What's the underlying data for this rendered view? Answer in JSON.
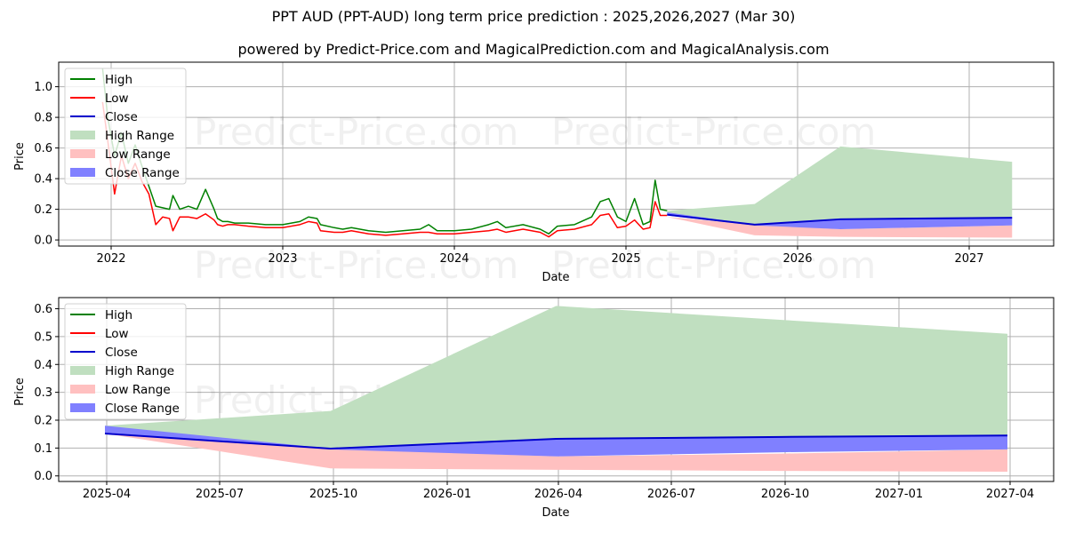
{
  "header": {
    "title": "PPT AUD (PPT-AUD) long term price prediction : 2025,2026,2027 (Mar 30)",
    "subtitle": "powered by Predict-Price.com and MagicalPrediction.com and MagicalAnalysis.com"
  },
  "watermark": "Predict-Price.com",
  "colors": {
    "high": "#008000",
    "low": "#ff0000",
    "close": "#0000cc",
    "high_range": "#c0dfc0",
    "low_range": "#ffc0c0",
    "close_range": "#8080ff",
    "grid": "#b0b0b0"
  },
  "legend": [
    "High",
    "Low",
    "Close",
    "High Range",
    "Low Range",
    "Close Range"
  ],
  "chart_data": [
    {
      "type": "line",
      "title": "PPT AUD (PPT-AUD) long term price prediction : 2025,2026,2027 (Mar 30)",
      "xlabel": "Date",
      "ylabel": "Price",
      "xlim": [
        2021.7,
        2027.5
      ],
      "ylim": [
        -0.04,
        1.16
      ],
      "xticks": [
        2022,
        2023,
        2024,
        2025,
        2026,
        2027
      ],
      "xtick_labels": [
        "2022",
        "2023",
        "2024",
        "2025",
        "2026",
        "2027"
      ],
      "yticks": [
        0.0,
        0.2,
        0.4,
        0.6,
        0.8,
        1.0
      ],
      "ytick_labels": [
        "0.0",
        "0.2",
        "0.4",
        "0.6",
        "0.8",
        "1.0"
      ],
      "grid": true,
      "legend_position": "upper left",
      "series": [
        {
          "name": "High",
          "x": [
            2021.95,
            2021.98,
            2022.02,
            2022.06,
            2022.1,
            2022.14,
            2022.18,
            2022.22,
            2022.26,
            2022.3,
            2022.34,
            2022.36,
            2022.4,
            2022.45,
            2022.5,
            2022.55,
            2022.6,
            2022.62,
            2022.65,
            2022.68,
            2022.72,
            2022.8,
            2022.9,
            2023.0,
            2023.1,
            2023.15,
            2023.2,
            2023.22,
            2023.3,
            2023.35,
            2023.4,
            2023.5,
            2023.6,
            2023.7,
            2023.8,
            2023.85,
            2023.9,
            2024.0,
            2024.1,
            2024.2,
            2024.25,
            2024.3,
            2024.4,
            2024.5,
            2024.55,
            2024.6,
            2024.7,
            2024.8,
            2024.85,
            2024.9,
            2024.95,
            2025.0,
            2025.05,
            2025.1,
            2025.14,
            2025.17,
            2025.2,
            2025.24
          ],
          "values": [
            1.12,
            0.8,
            0.55,
            0.7,
            0.5,
            0.62,
            0.48,
            0.35,
            0.22,
            0.21,
            0.2,
            0.29,
            0.2,
            0.22,
            0.2,
            0.33,
            0.2,
            0.14,
            0.12,
            0.12,
            0.11,
            0.11,
            0.1,
            0.1,
            0.12,
            0.15,
            0.14,
            0.1,
            0.08,
            0.07,
            0.08,
            0.06,
            0.05,
            0.06,
            0.07,
            0.1,
            0.06,
            0.06,
            0.07,
            0.1,
            0.12,
            0.08,
            0.1,
            0.07,
            0.04,
            0.09,
            0.1,
            0.15,
            0.25,
            0.27,
            0.15,
            0.12,
            0.27,
            0.1,
            0.12,
            0.39,
            0.2,
            0.19
          ]
        },
        {
          "name": "Low",
          "x": [
            2021.95,
            2021.98,
            2022.02,
            2022.06,
            2022.1,
            2022.14,
            2022.18,
            2022.22,
            2022.26,
            2022.3,
            2022.34,
            2022.36,
            2022.4,
            2022.45,
            2022.5,
            2022.55,
            2022.6,
            2022.62,
            2022.65,
            2022.68,
            2022.72,
            2022.8,
            2022.9,
            2023.0,
            2023.1,
            2023.15,
            2023.2,
            2023.22,
            2023.3,
            2023.35,
            2023.4,
            2023.5,
            2023.6,
            2023.7,
            2023.8,
            2023.85,
            2023.9,
            2024.0,
            2024.1,
            2024.2,
            2024.25,
            2024.3,
            2024.4,
            2024.5,
            2024.55,
            2024.6,
            2024.7,
            2024.8,
            2024.85,
            2024.9,
            2024.95,
            2025.0,
            2025.05,
            2025.1,
            2025.14,
            2025.17,
            2025.2,
            2025.24
          ],
          "values": [
            0.9,
            0.65,
            0.3,
            0.55,
            0.4,
            0.5,
            0.38,
            0.3,
            0.1,
            0.15,
            0.14,
            0.06,
            0.15,
            0.15,
            0.14,
            0.17,
            0.13,
            0.1,
            0.09,
            0.1,
            0.1,
            0.09,
            0.08,
            0.08,
            0.1,
            0.12,
            0.11,
            0.06,
            0.05,
            0.05,
            0.06,
            0.04,
            0.03,
            0.04,
            0.05,
            0.05,
            0.04,
            0.04,
            0.05,
            0.06,
            0.07,
            0.05,
            0.07,
            0.05,
            0.02,
            0.06,
            0.07,
            0.1,
            0.16,
            0.17,
            0.08,
            0.09,
            0.13,
            0.07,
            0.08,
            0.25,
            0.16,
            0.16
          ]
        },
        {
          "name": "Close",
          "x": [
            2025.24,
            2025.75,
            2026.25,
            2027.25
          ],
          "values": [
            0.165,
            0.1,
            0.135,
            0.145
          ]
        },
        {
          "name": "High Range",
          "x": [
            2025.24,
            2025.75,
            2026.25,
            2027.25
          ],
          "upper": [
            0.19,
            0.235,
            0.61,
            0.51
          ],
          "lower": [
            0.165,
            0.1,
            0.135,
            0.145
          ]
        },
        {
          "name": "Low Range",
          "x": [
            2025.24,
            2025.75,
            2026.25,
            2027.25
          ],
          "upper": [
            0.15,
            0.1,
            0.07,
            0.095
          ],
          "lower": [
            0.15,
            0.03,
            0.02,
            0.015
          ]
        },
        {
          "name": "Close Range",
          "x": [
            2025.24,
            2025.75,
            2026.25,
            2027.25
          ],
          "upper": [
            0.18,
            0.1,
            0.135,
            0.145
          ],
          "lower": [
            0.16,
            0.095,
            0.07,
            0.095
          ]
        }
      ]
    },
    {
      "type": "line",
      "title": "",
      "xlabel": "Date",
      "ylabel": "Price",
      "xlim": [
        "2025-02-15",
        "2027-05-20"
      ],
      "ylim": [
        -0.02,
        0.64
      ],
      "xticks": [
        "2025-04",
        "2025-07",
        "2025-10",
        "2026-01",
        "2026-04",
        "2026-07",
        "2026-10",
        "2027-01",
        "2027-04"
      ],
      "xtick_labels": [
        "2025-04",
        "2025-07",
        "2025-10",
        "2026-01",
        "2026-04",
        "2026-07",
        "2026-10",
        "2027-01",
        "2027-04"
      ],
      "yticks": [
        0.0,
        0.1,
        0.2,
        0.3,
        0.4,
        0.5,
        0.6
      ],
      "ytick_labels": [
        "0.0",
        "0.1",
        "0.2",
        "0.3",
        "0.4",
        "0.5",
        "0.6"
      ],
      "grid": true,
      "legend_position": "upper left",
      "x_months": [
        0,
        6,
        12,
        18,
        24
      ],
      "x_dates": [
        "2025-03-30",
        "2025-09-25",
        "2026-03-30",
        "2026-09-25",
        "2027-03-30"
      ],
      "series": [
        {
          "name": "Close",
          "values": [
            0.152,
            0.098,
            0.133,
            0.14,
            0.145
          ]
        },
        {
          "name": "High Range",
          "upper": [
            0.18,
            0.233,
            0.61,
            0.56,
            0.51
          ],
          "lower": [
            0.152,
            0.098,
            0.133,
            0.14,
            0.145
          ]
        },
        {
          "name": "Low Range",
          "upper": [
            0.16,
            0.098,
            0.07,
            0.08,
            0.095
          ],
          "lower": [
            0.152,
            0.027,
            0.022,
            0.018,
            0.015
          ]
        },
        {
          "name": "Close Range",
          "upper": [
            0.18,
            0.098,
            0.133,
            0.14,
            0.145
          ],
          "lower": [
            0.155,
            0.095,
            0.07,
            0.085,
            0.095
          ]
        }
      ]
    }
  ]
}
